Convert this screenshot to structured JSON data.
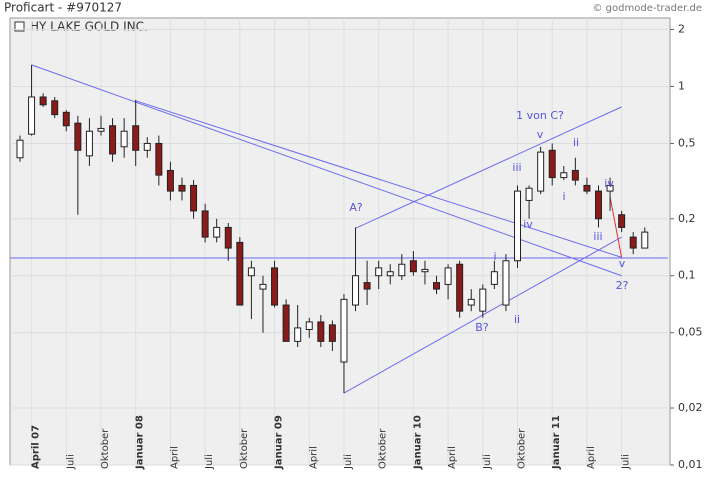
{
  "chart_data": {
    "type": "candlestick",
    "title": "Proficart - #970127",
    "copyright": "© godmode-trader.de",
    "legend": "HY LAKE GOLD INC.",
    "log_scale": true,
    "grid": true,
    "up_color": "#ffffff",
    "down_color": "#8b1a1a",
    "line_color": "#6b6bf0",
    "accent_color": "#e03030",
    "ylim": [
      0.01,
      2.3
    ],
    "yticks": [
      2,
      1,
      {
        "value": 0.5,
        "label": "0,5"
      },
      {
        "value": 0.2,
        "label": "0,2"
      },
      {
        "value": 0.1,
        "label": "0,1"
      },
      {
        "value": 0.05,
        "label": "0,05"
      },
      {
        "value": 0.02,
        "label": "0,02"
      },
      {
        "value": 0.01,
        "label": "0,01"
      }
    ],
    "categories": [
      null,
      "April 07",
      null,
      null,
      "Juli",
      null,
      null,
      "Oktober",
      null,
      null,
      "Januar 08",
      null,
      null,
      "April",
      null,
      null,
      "Juli",
      null,
      null,
      "Oktober",
      null,
      null,
      "Januar 09",
      null,
      null,
      "April",
      null,
      null,
      "Juli",
      null,
      null,
      "Oktober",
      null,
      null,
      "Januar 10",
      null,
      null,
      "April",
      null,
      null,
      "Juli",
      null,
      null,
      "Oktober",
      null,
      null,
      "Januar 11",
      null,
      null,
      "April",
      null,
      null,
      "Juli",
      null,
      null
    ],
    "open": [
      0.42,
      0.56,
      0.88,
      0.84,
      0.73,
      0.64,
      0.43,
      0.58,
      0.62,
      0.48,
      0.62,
      0.46,
      0.5,
      0.36,
      0.3,
      0.3,
      0.22,
      0.16,
      0.18,
      0.15,
      0.1,
      0.085,
      0.11,
      0.07,
      0.045,
      0.052,
      0.057,
      0.055,
      0.035,
      0.07,
      0.092,
      0.1,
      0.1,
      0.1,
      0.12,
      0.105,
      0.092,
      0.09,
      0.115,
      0.07,
      0.065,
      0.09,
      0.07,
      0.12,
      0.25,
      0.28,
      0.46,
      0.33,
      0.36,
      0.3,
      0.28,
      0.28,
      0.21,
      0.16,
      0.14
    ],
    "high": [
      0.55,
      1.3,
      0.92,
      0.88,
      0.75,
      0.7,
      0.68,
      0.7,
      0.68,
      0.68,
      0.85,
      0.54,
      0.55,
      0.4,
      0.33,
      0.32,
      0.24,
      0.2,
      0.19,
      0.16,
      0.12,
      0.1,
      0.12,
      0.075,
      0.07,
      0.06,
      0.062,
      0.058,
      0.08,
      0.18,
      0.12,
      0.12,
      0.115,
      0.13,
      0.135,
      0.12,
      0.1,
      0.115,
      0.12,
      0.085,
      0.09,
      0.12,
      0.13,
      0.3,
      0.3,
      0.48,
      0.5,
      0.38,
      0.42,
      0.33,
      0.3,
      0.33,
      0.22,
      0.17,
      0.18
    ],
    "low": [
      0.4,
      0.55,
      0.78,
      0.68,
      0.58,
      0.21,
      0.38,
      0.55,
      0.4,
      0.42,
      0.38,
      0.42,
      0.3,
      0.25,
      0.25,
      0.2,
      0.15,
      0.15,
      0.12,
      0.07,
      0.059,
      0.05,
      0.068,
      0.045,
      0.042,
      0.047,
      0.042,
      0.04,
      0.024,
      0.065,
      0.07,
      0.085,
      0.09,
      0.095,
      0.1,
      0.09,
      0.08,
      0.075,
      0.06,
      0.065,
      0.06,
      0.085,
      0.065,
      0.11,
      0.2,
      0.27,
      0.3,
      0.32,
      0.3,
      0.27,
      0.18,
      0.22,
      0.17,
      0.13,
      0.14
    ],
    "close": [
      0.52,
      0.88,
      0.8,
      0.71,
      0.62,
      0.46,
      0.58,
      0.6,
      0.44,
      0.58,
      0.46,
      0.5,
      0.34,
      0.28,
      0.28,
      0.22,
      0.16,
      0.18,
      0.14,
      0.07,
      0.11,
      0.09,
      0.07,
      0.045,
      0.053,
      0.057,
      0.045,
      0.045,
      0.075,
      0.1,
      0.085,
      0.11,
      0.105,
      0.115,
      0.105,
      0.108,
      0.085,
      0.11,
      0.065,
      0.075,
      0.085,
      0.105,
      0.12,
      0.28,
      0.29,
      0.45,
      0.33,
      0.35,
      0.32,
      0.28,
      0.2,
      0.3,
      0.18,
      0.14,
      0.17
    ],
    "trendlines": [
      {
        "x": [
          1,
          52
        ],
        "values": [
          1.3,
          0.1
        ]
      },
      {
        "x": [
          10,
          52
        ],
        "values": [
          0.84,
          0.125
        ]
      },
      {
        "x": [
          28,
          52
        ],
        "values": [
          0.024,
          0.16
        ]
      },
      {
        "x": [
          29,
          52
        ],
        "values": [
          0.178,
          0.78
        ]
      },
      {
        "x": [
          -1,
          56
        ],
        "values": [
          0.124,
          0.124
        ]
      },
      {
        "x": [
          51,
          52
        ],
        "values": [
          0.26,
          0.125
        ],
        "accent": true
      }
    ],
    "annotations": [
      "A?",
      "B?",
      "1 von C?",
      "v",
      "iii",
      "iv",
      "i",
      "ii",
      "ii",
      "i",
      "iv",
      "iii",
      "v",
      "2?"
    ]
  }
}
